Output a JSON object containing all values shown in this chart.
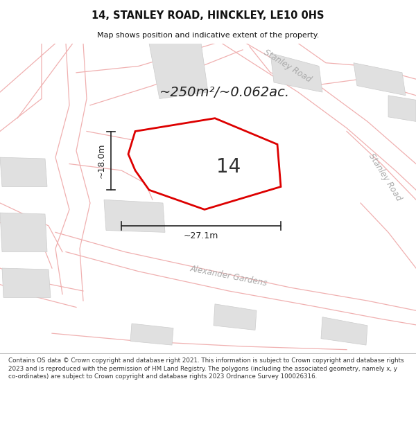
{
  "title": "14, STANLEY ROAD, HINCKLEY, LE10 0HS",
  "subtitle": "Map shows position and indicative extent of the property.",
  "bg_color": "#ffffff",
  "area_text": "~250m²/~0.062ac.",
  "number_label": "14",
  "width_label": "~27.1m",
  "height_label": "~18.0m",
  "footer": "Contains OS data © Crown copyright and database right 2021. This information is subject to Crown copyright and database rights 2023 and is reproduced with the permission of HM Land Registry. The polygons (including the associated geometry, namely x, y co-ordinates) are subject to Crown copyright and database rights 2023 Ordnance Survey 100026316.",
  "road_line_color": "#f0b0b0",
  "building_fill": "#e0e0e0",
  "building_edge": "#cccccc",
  "plot_fill": "#ffffff",
  "plot_edge": "#dd0000",
  "road_label_color": "#aaaaaa",
  "dim_color": "#222222",
  "title_color": "#111111"
}
